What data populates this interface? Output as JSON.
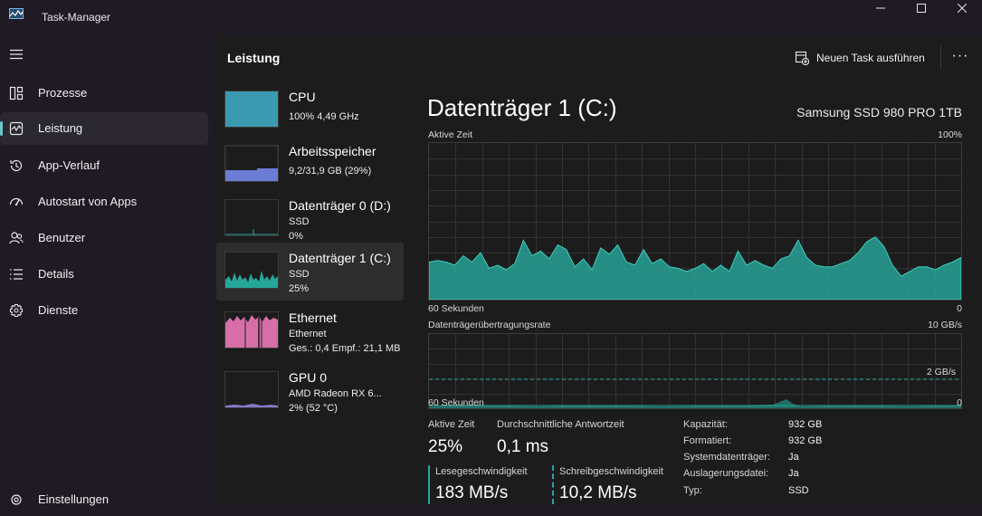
{
  "app": {
    "title": "Task-Manager"
  },
  "colors": {
    "accent": "#69c8c8",
    "disk": "#27a69a",
    "cpu": "#3a9bb0",
    "memory": "#6b7bd6",
    "network": "#d66fa8",
    "gpu": "#8a77c9"
  },
  "sidebar": {
    "items": [
      {
        "label": "Prozesse",
        "icon": "processes-icon"
      },
      {
        "label": "Leistung",
        "icon": "performance-icon"
      },
      {
        "label": "App-Verlauf",
        "icon": "history-icon"
      },
      {
        "label": "Autostart von Apps",
        "icon": "startup-icon"
      },
      {
        "label": "Benutzer",
        "icon": "users-icon"
      },
      {
        "label": "Details",
        "icon": "details-icon"
      },
      {
        "label": "Dienste",
        "icon": "services-icon"
      }
    ],
    "settings_label": "Einstellungen"
  },
  "header": {
    "title": "Leistung",
    "run_task_label": "Neuen Task ausführen",
    "more_label": "···"
  },
  "perf_list": [
    {
      "name": "CPU",
      "sub1": "100% 4,49 GHz",
      "sub2": ""
    },
    {
      "name": "Arbeitsspeicher",
      "sub1": "9,2/31,9 GB (29%)",
      "sub2": ""
    },
    {
      "name": "Datenträger 0 (D:)",
      "sub1": "SSD",
      "sub2": "0%"
    },
    {
      "name": "Datenträger 1 (C:)",
      "sub1": "SSD",
      "sub2": "25%"
    },
    {
      "name": "Ethernet",
      "sub1": "Ethernet",
      "sub2": "Ges.: 0,4 Empf.: 21,1 MB"
    },
    {
      "name": "GPU 0",
      "sub1": "AMD Radeon RX 6...",
      "sub2": "2% (52 °C)"
    }
  ],
  "detail": {
    "title": "Datenträger 1 (C:)",
    "device": "Samsung SSD 980 PRO 1TB",
    "active_time_label": "Aktive Zeit",
    "active_time_max": "100%",
    "seconds_label": "60 Sekunden",
    "zero_label": "0",
    "transfer_label": "Datenträgerübertragungsrate",
    "transfer_max": "10 GB/s",
    "transfer_mid": "2 GB/s",
    "stats": {
      "active_time_label": "Aktive Zeit",
      "active_time_value": "25%",
      "response_label": "Durchschnittliche Antwortzeit",
      "response_value": "0,1 ms",
      "read_label": "Lesegeschwindigkeit",
      "read_value": "183 MB/s",
      "write_label": "Schreibgeschwindigkeit",
      "write_value": "10,2 MB/s"
    },
    "properties": [
      {
        "label": "Kapazität:",
        "value": "932 GB"
      },
      {
        "label": "Formatiert:",
        "value": "932 GB"
      },
      {
        "label": "Systemdatenträger:",
        "value": "Ja"
      },
      {
        "label": "Auslagerungsdatei:",
        "value": "Ja"
      },
      {
        "label": "Typ:",
        "value": "SSD"
      }
    ]
  },
  "chart_data": {
    "type": "area",
    "active_time_percent": [
      24,
      25,
      24,
      22,
      28,
      24,
      30,
      20,
      22,
      19,
      23,
      38,
      28,
      31,
      26,
      35,
      32,
      21,
      26,
      19,
      33,
      29,
      35,
      24,
      22,
      32,
      23,
      26,
      21,
      20,
      18,
      20,
      23,
      18,
      22,
      18,
      31,
      22,
      25,
      22,
      20,
      26,
      28,
      38,
      27,
      22,
      21,
      21,
      23,
      25,
      30,
      37,
      40,
      34,
      22,
      15,
      18,
      21,
      21,
      19,
      22,
      24,
      27
    ]
  }
}
